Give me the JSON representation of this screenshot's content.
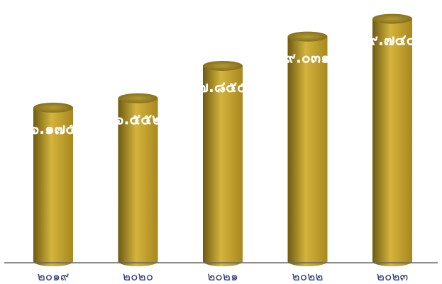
{
  "chart_data": {
    "type": "bar",
    "style": "3d-cylinder",
    "categories": [
      "๒๐๑๙",
      "๒๐๒๐",
      "๒๐๒๑",
      "๒๐๒๒",
      "๒๐๒๓"
    ],
    "values": [
      6175,
      6552,
      7855,
      9031,
      9744
    ],
    "value_labels": [
      "๖.๑๗๕",
      "๖.๕๕๒",
      "๗.๘๕๕",
      "๙.๐๓๑",
      "๙.๗๔๔"
    ],
    "title": "",
    "xlabel": "",
    "ylabel": "",
    "ylim": [
      0,
      10500
    ],
    "grid": false,
    "legend": "none",
    "colors": {
      "bar_light": "#d4b43c",
      "bar_dark": "#6e5a12",
      "bar_mid": "#a8871f",
      "top_light": "#b39a35",
      "top_dark": "#7d6816",
      "value_text": "#ffffff",
      "tick_text": "#2f3a78",
      "axis": "#666666"
    }
  }
}
